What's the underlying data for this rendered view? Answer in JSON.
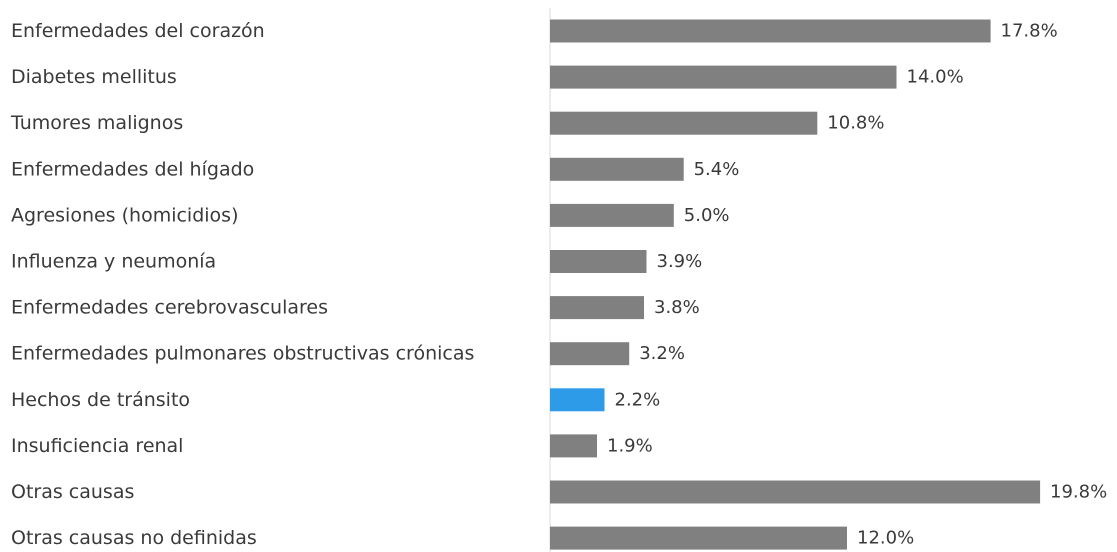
{
  "chart_data": {
    "type": "bar",
    "orientation": "horizontal",
    "categories": [
      "Enfermedades del corazón",
      "Diabetes mellitus",
      "Tumores malignos",
      "Enfermedades del hígado",
      "Agresiones (homicidios)",
      "Influenza y neumonía",
      "Enfermedades cerebrovasculares",
      "Enfermedades pulmonares obstructivas crónicas",
      "Hechos de tránsito",
      "Insuficiencia renal",
      "Otras causas",
      "Otras causas no definidas"
    ],
    "values": [
      17.8,
      14.0,
      10.8,
      5.4,
      5.0,
      3.9,
      3.8,
      3.2,
      2.2,
      1.9,
      19.8,
      12.0
    ],
    "value_labels": [
      "17.8%",
      "14.0%",
      "10.8%",
      "5.4%",
      "5.0%",
      "3.9%",
      "3.8%",
      "3.2%",
      "2.2%",
      "1.9%",
      "19.8%",
      "12.0%"
    ],
    "highlight_category": "Hechos de tránsito",
    "title": "",
    "xlabel": "",
    "ylabel": "",
    "xlim": [
      0,
      20
    ],
    "grid": false,
    "legend": "none",
    "colors": {
      "default_bar": "#808080",
      "highlight_bar": "#2e9be8",
      "axis_line": "#d9d9d9",
      "text": "#3a3a3a"
    }
  }
}
